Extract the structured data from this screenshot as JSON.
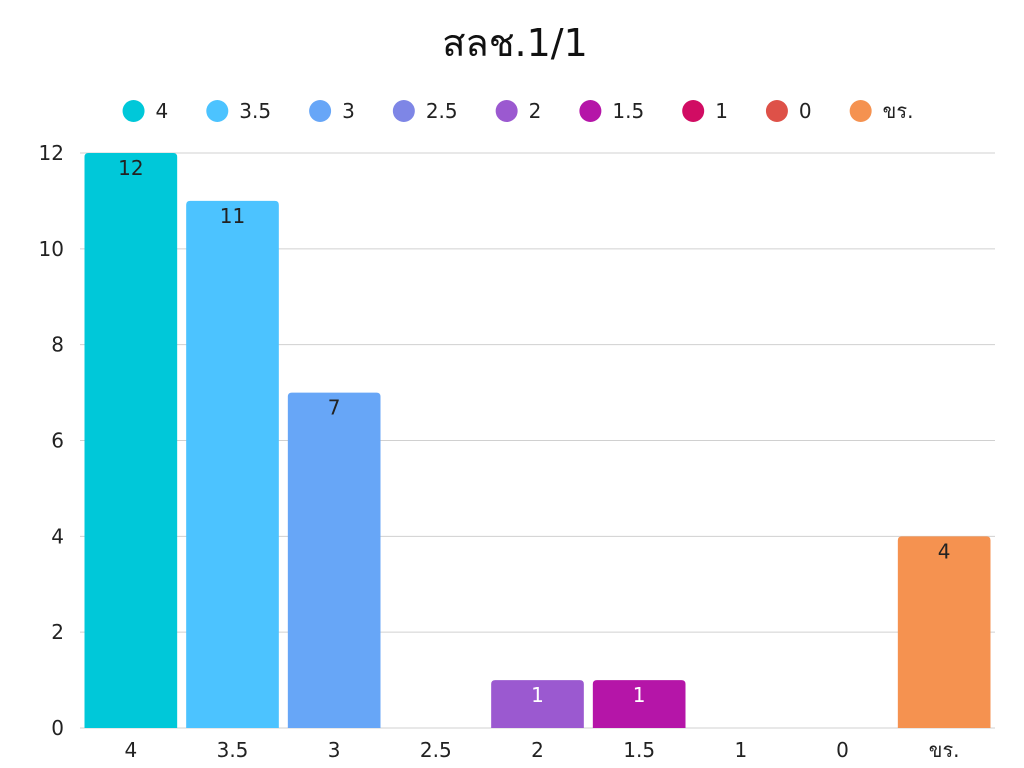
{
  "chart_data": {
    "type": "bar",
    "title": "สลช.1/1",
    "categories": [
      "4",
      "3.5",
      "3",
      "2.5",
      "2",
      "1.5",
      "1",
      "0",
      "ขร."
    ],
    "values": [
      12,
      11,
      7,
      0,
      1,
      1,
      0,
      0,
      4
    ],
    "colors": [
      "#00c8d9",
      "#4cc3ff",
      "#67a6f7",
      "#7e86e6",
      "#9b59d0",
      "#b515a8",
      "#d10c63",
      "#de5148",
      "#f59250"
    ],
    "label_colors": [
      "#222222",
      "#222222",
      "#222222",
      "#ffffff",
      "#ffffff",
      "#ffffff",
      "#ffffff",
      "#ffffff",
      "#222222"
    ],
    "yticks": [
      0,
      2,
      4,
      6,
      8,
      10,
      12
    ],
    "ylim": [
      0,
      12
    ],
    "legend": [
      "4",
      "3.5",
      "3",
      "2.5",
      "2",
      "1.5",
      "1",
      "0",
      "ขร."
    ],
    "legend_position": "top",
    "grid": true,
    "xlabel": "",
    "ylabel": ""
  }
}
